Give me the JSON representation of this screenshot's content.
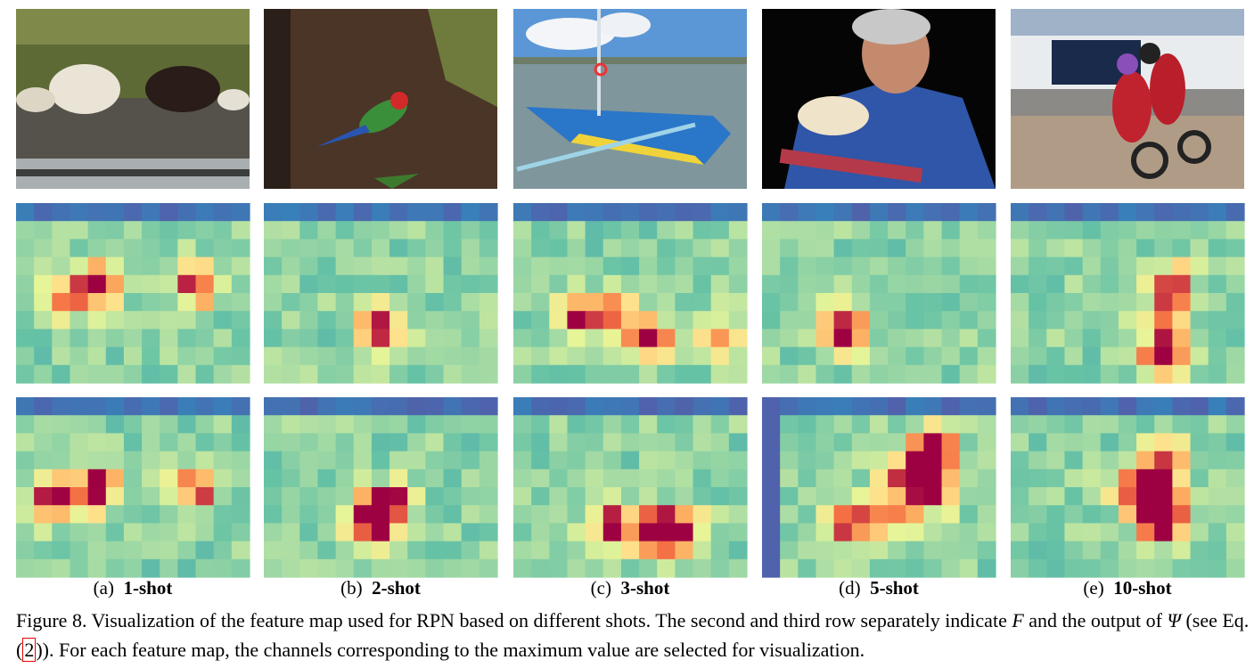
{
  "panels": [
    {
      "label": "(a)",
      "title": "1-shot"
    },
    {
      "label": "(b)",
      "title": "2-shot"
    },
    {
      "label": "(c)",
      "title": "3-shot"
    },
    {
      "label": "(d)",
      "title": "5-shot"
    },
    {
      "label": "(e)",
      "title": "10-shot"
    }
  ],
  "caption": {
    "parts": [
      "Figure 8. Visualization of the feature map used for RPN based on different shots. The second and third row separately indicate ",
      "F",
      " and the output of ",
      "Ψ",
      " (see Eq. (",
      "2",
      ")).",
      " For each feature map, the channels corresponding to the maximum value are selected for visualization."
    ]
  }
}
